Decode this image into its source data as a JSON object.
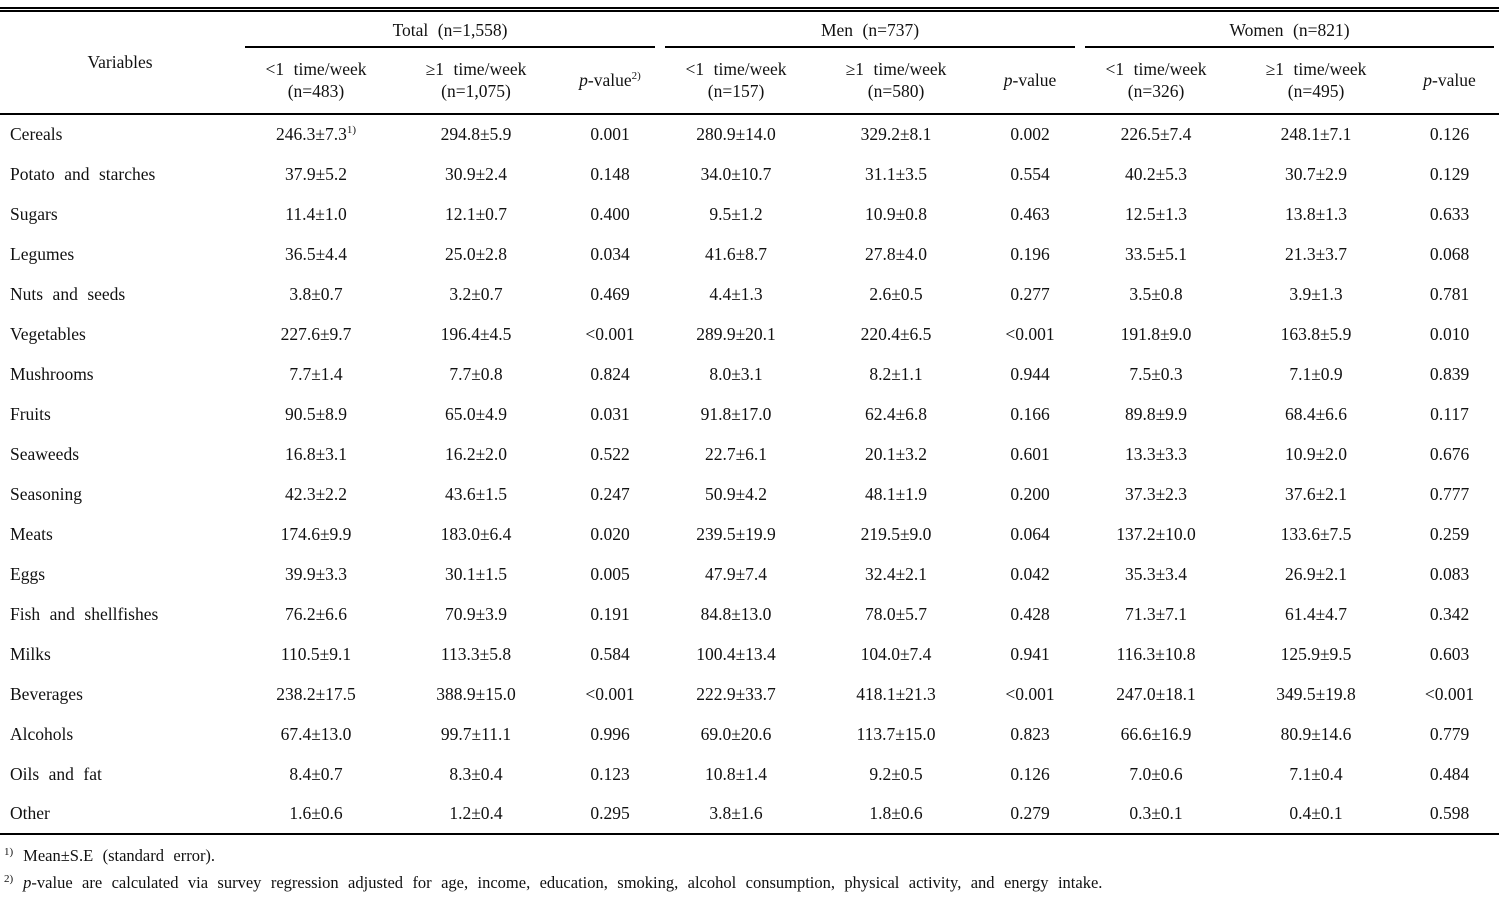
{
  "table": {
    "variables_header": "Variables",
    "groups": [
      {
        "label": "Total (n=1,558)",
        "columns": [
          {
            "line1": "<1 time/week",
            "line2": "(n=483)"
          },
          {
            "line1": "≥1 time/week",
            "line2": "(n=1,075)"
          },
          {
            "pvalue": true,
            "italic": "p",
            "rest": "-value",
            "sup": "2)"
          }
        ]
      },
      {
        "label": "Men (n=737)",
        "columns": [
          {
            "line1": "<1 time/week",
            "line2": "(n=157)"
          },
          {
            "line1": "≥1 time/week",
            "line2": "(n=580)"
          },
          {
            "pvalue": true,
            "italic": "p",
            "rest": "-value",
            "sup": ""
          }
        ]
      },
      {
        "label": "Women (n=821)",
        "columns": [
          {
            "line1": "<1 time/week",
            "line2": "(n=326)"
          },
          {
            "line1": "≥1 time/week",
            "line2": "(n=495)"
          },
          {
            "pvalue": true,
            "italic": "p",
            "rest": "-value",
            "sup": ""
          }
        ]
      }
    ],
    "rows": [
      {
        "variable": "Cereals",
        "values": [
          "246.3±7.3^1)",
          "294.8±5.9",
          "0.001",
          "280.9±14.0",
          "329.2±8.1",
          "0.002",
          "226.5±7.4",
          "248.1±7.1",
          "0.126"
        ]
      },
      {
        "variable": "Potato and starches",
        "values": [
          "37.9±5.2",
          "30.9±2.4",
          "0.148",
          "34.0±10.7",
          "31.1±3.5",
          "0.554",
          "40.2±5.3",
          "30.7±2.9",
          "0.129"
        ]
      },
      {
        "variable": "Sugars",
        "values": [
          "11.4±1.0",
          "12.1±0.7",
          "0.400",
          "9.5±1.2",
          "10.9±0.8",
          "0.463",
          "12.5±1.3",
          "13.8±1.3",
          "0.633"
        ]
      },
      {
        "variable": "Legumes",
        "values": [
          "36.5±4.4",
          "25.0±2.8",
          "0.034",
          "41.6±8.7",
          "27.8±4.0",
          "0.196",
          "33.5±5.1",
          "21.3±3.7",
          "0.068"
        ]
      },
      {
        "variable": "Nuts and seeds",
        "values": [
          "3.8±0.7",
          "3.2±0.7",
          "0.469",
          "4.4±1.3",
          "2.6±0.5",
          "0.277",
          "3.5±0.8",
          "3.9±1.3",
          "0.781"
        ]
      },
      {
        "variable": "Vegetables",
        "values": [
          "227.6±9.7",
          "196.4±4.5",
          "<0.001",
          "289.9±20.1",
          "220.4±6.5",
          "<0.001",
          "191.8±9.0",
          "163.8±5.9",
          "0.010"
        ]
      },
      {
        "variable": "Mushrooms",
        "values": [
          "7.7±1.4",
          "7.7±0.8",
          "0.824",
          "8.0±3.1",
          "8.2±1.1",
          "0.944",
          "7.5±0.3",
          "7.1±0.9",
          "0.839"
        ]
      },
      {
        "variable": "Fruits",
        "values": [
          "90.5±8.9",
          "65.0±4.9",
          "0.031",
          "91.8±17.0",
          "62.4±6.8",
          "0.166",
          "89.8±9.9",
          "68.4±6.6",
          "0.117"
        ]
      },
      {
        "variable": "Seaweeds",
        "values": [
          "16.8±3.1",
          "16.2±2.0",
          "0.522",
          "22.7±6.1",
          "20.1±3.2",
          "0.601",
          "13.3±3.3",
          "10.9±2.0",
          "0.676"
        ]
      },
      {
        "variable": "Seasoning",
        "values": [
          "42.3±2.2",
          "43.6±1.5",
          "0.247",
          "50.9±4.2",
          "48.1±1.9",
          "0.200",
          "37.3±2.3",
          "37.6±2.1",
          "0.777"
        ]
      },
      {
        "variable": "Meats",
        "values": [
          "174.6±9.9",
          "183.0±6.4",
          "0.020",
          "239.5±19.9",
          "219.5±9.0",
          "0.064",
          "137.2±10.0",
          "133.6±7.5",
          "0.259"
        ]
      },
      {
        "variable": "Eggs",
        "values": [
          "39.9±3.3",
          "30.1±1.5",
          "0.005",
          "47.9±7.4",
          "32.4±2.1",
          "0.042",
          "35.3±3.4",
          "26.9±2.1",
          "0.083"
        ]
      },
      {
        "variable": "Fish and shellfishes",
        "values": [
          "76.2±6.6",
          "70.9±3.9",
          "0.191",
          "84.8±13.0",
          "78.0±5.7",
          "0.428",
          "71.3±7.1",
          "61.4±4.7",
          "0.342"
        ]
      },
      {
        "variable": "Milks",
        "values": [
          "110.5±9.1",
          "113.3±5.8",
          "0.584",
          "100.4±13.4",
          "104.0±7.4",
          "0.941",
          "116.3±10.8",
          "125.9±9.5",
          "0.603"
        ]
      },
      {
        "variable": "Beverages",
        "values": [
          "238.2±17.5",
          "388.9±15.0",
          "<0.001",
          "222.9±33.7",
          "418.1±21.3",
          "<0.001",
          "247.0±18.1",
          "349.5±19.8",
          "<0.001"
        ]
      },
      {
        "variable": "Alcohols",
        "values": [
          "67.4±13.0",
          "99.7±11.1",
          "0.996",
          "69.0±20.6",
          "113.7±15.0",
          "0.823",
          "66.6±16.9",
          "80.9±14.6",
          "0.779"
        ]
      },
      {
        "variable": "Oils and fat",
        "values": [
          "8.4±0.7",
          "8.3±0.4",
          "0.123",
          "10.8±1.4",
          "9.2±0.5",
          "0.126",
          "7.0±0.6",
          "7.1±0.4",
          "0.484"
        ]
      },
      {
        "variable": "Other",
        "values": [
          "1.6±0.6",
          "1.2±0.4",
          "0.295",
          "3.8±1.6",
          "1.8±0.6",
          "0.279",
          "0.3±0.1",
          "0.4±0.1",
          "0.598"
        ]
      }
    ],
    "footnotes": [
      {
        "sup": "1)",
        "italic": "",
        "text": "Mean±S.E (standard error)."
      },
      {
        "sup": "2)",
        "italic": "p",
        "text": "-value are calculated via survey regression adjusted for age, income, education, smoking, alcohol consumption, physical activity, and energy intake."
      }
    ]
  },
  "colors": {
    "text": "#111111",
    "rule": "#000000",
    "background": "#ffffff"
  }
}
